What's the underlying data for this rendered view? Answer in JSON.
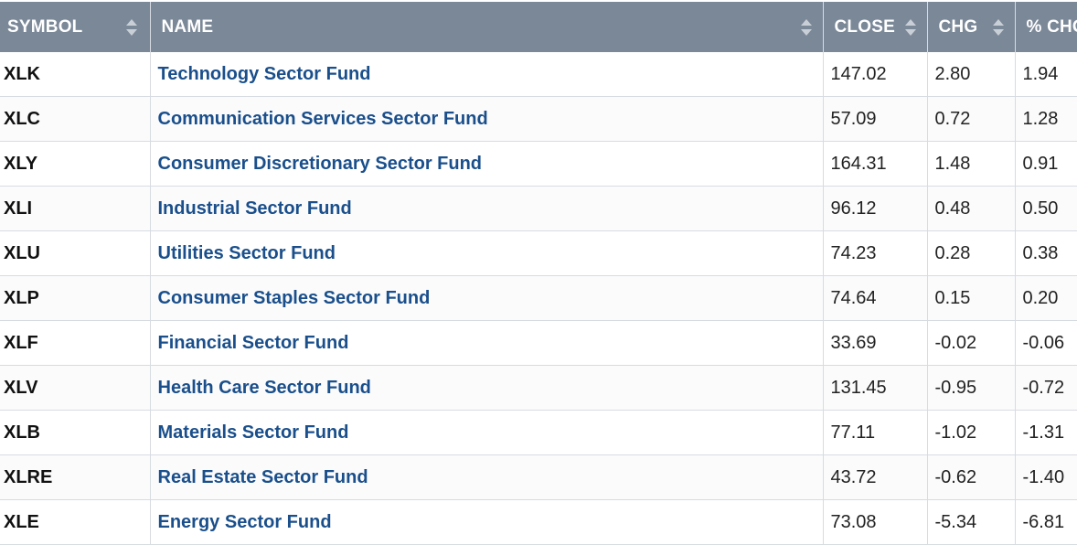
{
  "headers": {
    "symbol": "SYMBOL",
    "name": "NAME",
    "close": "CLOSE",
    "chg": "CHG",
    "pct_chg": "% CHG"
  },
  "rows": [
    {
      "symbol": "XLK",
      "name": "Technology Sector Fund",
      "close": "147.02",
      "chg": "2.80",
      "pct_chg": "1.94"
    },
    {
      "symbol": "XLC",
      "name": "Communication Services Sector Fund",
      "close": "57.09",
      "chg": "0.72",
      "pct_chg": "1.28"
    },
    {
      "symbol": "XLY",
      "name": "Consumer Discretionary Sector Fund",
      "close": "164.31",
      "chg": "1.48",
      "pct_chg": "0.91"
    },
    {
      "symbol": "XLI",
      "name": "Industrial Sector Fund",
      "close": "96.12",
      "chg": "0.48",
      "pct_chg": "0.50"
    },
    {
      "symbol": "XLU",
      "name": "Utilities Sector Fund",
      "close": "74.23",
      "chg": "0.28",
      "pct_chg": "0.38"
    },
    {
      "symbol": "XLP",
      "name": "Consumer Staples Sector Fund",
      "close": "74.64",
      "chg": "0.15",
      "pct_chg": "0.20"
    },
    {
      "symbol": "XLF",
      "name": "Financial Sector Fund",
      "close": "33.69",
      "chg": "-0.02",
      "pct_chg": "-0.06"
    },
    {
      "symbol": "XLV",
      "name": "Health Care Sector Fund",
      "close": "131.45",
      "chg": "-0.95",
      "pct_chg": "-0.72"
    },
    {
      "symbol": "XLB",
      "name": "Materials Sector Fund",
      "close": "77.11",
      "chg": "-1.02",
      "pct_chg": "-1.31"
    },
    {
      "symbol": "XLRE",
      "name": "Real Estate Sector Fund",
      "close": "43.72",
      "chg": "-0.62",
      "pct_chg": "-1.40"
    },
    {
      "symbol": "XLE",
      "name": "Energy Sector Fund",
      "close": "73.08",
      "chg": "-5.34",
      "pct_chg": "-6.81"
    }
  ],
  "colors": {
    "header_bg": "#7b8898",
    "header_text": "#ffffff",
    "link": "#1a4f8b",
    "grid": "#d7dce2"
  },
  "icons": {
    "sort": "sort-arrows-icon"
  }
}
